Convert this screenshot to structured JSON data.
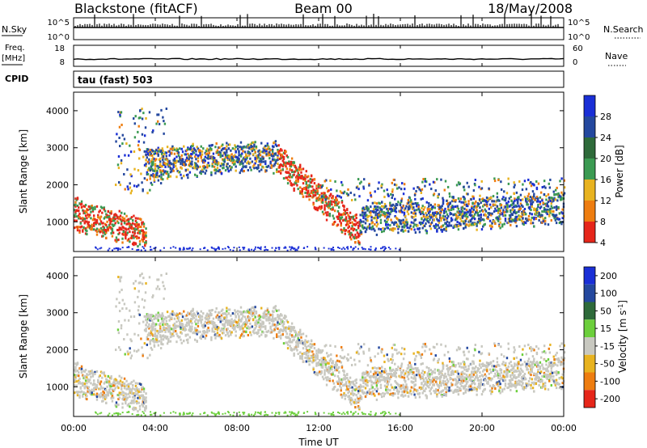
{
  "header": {
    "title": "Blackstone (fitACF)",
    "beam": "Beam 00",
    "date": "18/May/2008"
  },
  "top_panels": {
    "nsky_label": "N.Sky",
    "nsearch_label": "N.Search",
    "nsky_ticks": [
      "10^5",
      "10^0"
    ],
    "nsearch_ticks": [
      "10^5",
      "10^0"
    ],
    "freq_label": "Freq.",
    "freq_unit": "[MHz]",
    "freq_ticks": [
      "18",
      "8"
    ],
    "nave_label": "Nave",
    "nave_ticks": [
      "60",
      "0"
    ],
    "cpid_label": "CPID",
    "cpid_value": "tau (fast) 503"
  },
  "colors": {
    "power_scale": [
      "#1a2fd6",
      "#24489e",
      "#2e6a3a",
      "#3b9a52",
      "#e8b320",
      "#ee7d10",
      "#e6261a"
    ],
    "velocity_scale": [
      "#1a2fd6",
      "#24489e",
      "#2e6a3a",
      "#6ccf3c",
      "#c8c8c0",
      "#e8b320",
      "#ee7d10",
      "#e6261a"
    ],
    "ground_scatter": "#c8c8c0"
  },
  "chart_data": [
    {
      "type": "heatmap",
      "title": "",
      "ylabel": "Slant Range [km]",
      "xlabel": "",
      "ylim": [
        200,
        4500
      ],
      "yticks": [
        "1000",
        "2000",
        "3000",
        "4000"
      ],
      "colorbar_label": "Power [dB]",
      "colorbar_ticks": [
        "28",
        "24",
        "20",
        "16",
        "12",
        "8",
        "4"
      ],
      "approx_bands": [
        {
          "t0": 0,
          "t1": 3.5,
          "r_start": 1250,
          "r_end": 700,
          "level": "high"
        },
        {
          "t0": 3.5,
          "t1": 10,
          "r_start": 2600,
          "r_end": 2800,
          "level": "medium"
        },
        {
          "t0": 10,
          "t1": 14,
          "r_start": 2700,
          "r_end": 700,
          "level": "high"
        },
        {
          "t0": 14,
          "t1": 24,
          "r_start": 1100,
          "r_end": 1400,
          "level": "medium"
        }
      ]
    },
    {
      "type": "heatmap",
      "title": "",
      "ylabel": "Slant Range [km]",
      "xlabel": "Time UT",
      "ylim": [
        200,
        4500
      ],
      "yticks": [
        "1000",
        "2000",
        "3000",
        "4000"
      ],
      "xticks": [
        "00:00",
        "04:00",
        "08:00",
        "12:00",
        "16:00",
        "20:00",
        "00:00"
      ],
      "colorbar_label": "Velocity [m s^-1]",
      "colorbar_ticks": [
        "200",
        "100",
        "50",
        "15",
        "-15",
        "-50",
        "-100",
        "-200"
      ],
      "approx_bands": [
        {
          "t0": 0,
          "t1": 3.5,
          "r_start": 1250,
          "r_end": 700,
          "level": "ground"
        },
        {
          "t0": 3.5,
          "t1": 10,
          "r_start": 2600,
          "r_end": 2800,
          "level": "ground"
        },
        {
          "t0": 10,
          "t1": 14,
          "r_start": 2700,
          "r_end": 700,
          "level": "ground"
        },
        {
          "t0": 14,
          "t1": 24,
          "r_start": 1100,
          "r_end": 1400,
          "level": "ground"
        }
      ]
    }
  ]
}
